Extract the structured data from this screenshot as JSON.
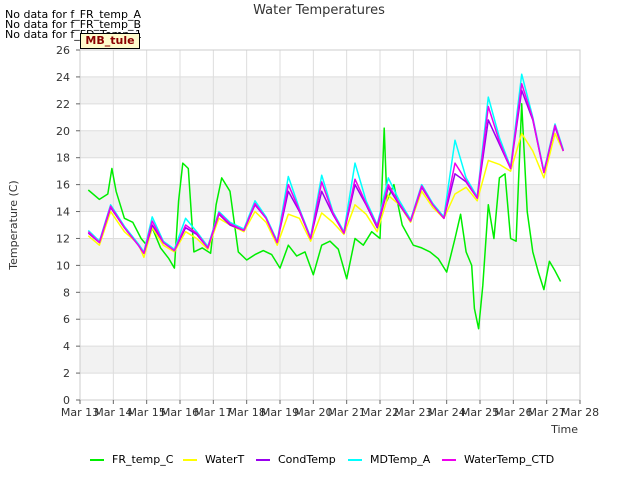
{
  "nodata_messages": [
    "No data for f_FR_temp_A",
    "No data for f_FR_temp_B",
    "No data for f_FD_Temp_1"
  ],
  "badge_label": "MB_tule",
  "chart_data": {
    "type": "line",
    "title": "Water Temperatures",
    "xlabel": "Time",
    "ylabel": "Temperature (C)",
    "ylim": [
      0,
      26
    ],
    "yticks": [
      0,
      2,
      4,
      6,
      8,
      10,
      12,
      14,
      16,
      18,
      20,
      22,
      24,
      26
    ],
    "xlim": [
      "Mar 13",
      "Mar 28"
    ],
    "xtick_labels": [
      "Mar 13",
      "Mar 14",
      "Mar 15",
      "Mar 16",
      "Mar 17",
      "Mar 18",
      "Mar 19",
      "Mar 20",
      "Mar 21",
      "Mar 22",
      "Mar 23",
      "Mar 24",
      "Mar 25",
      "Mar 26",
      "Mar 27",
      "Mar 28"
    ],
    "grid": true,
    "legend_position": "bottom",
    "series": [
      {
        "name": "FR_temp_C",
        "color": "#00ee00",
        "points": [
          [
            "Mar 13 06:00",
            15.6
          ],
          [
            "Mar 13 14:00",
            14.9
          ],
          [
            "Mar 13 20:00",
            15.3
          ],
          [
            "Mar 13 23:00",
            17.2
          ],
          [
            "Mar 14 02:00",
            15.5
          ],
          [
            "Mar 14 08:00",
            13.5
          ],
          [
            "Mar 14 14:00",
            13.2
          ],
          [
            "Mar 14 20:00",
            12.0
          ],
          [
            "Mar 15 00:00",
            11.5
          ],
          [
            "Mar 15 04:00",
            12.8
          ],
          [
            "Mar 15 10:00",
            11.3
          ],
          [
            "Mar 15 16:00",
            10.5
          ],
          [
            "Mar 15 20:00",
            9.8
          ],
          [
            "Mar 15 23:00",
            14.8
          ],
          [
            "Mar 16 02:00",
            17.6
          ],
          [
            "Mar 16 06:00",
            17.2
          ],
          [
            "Mar 16 10:00",
            11.0
          ],
          [
            "Mar 16 16:00",
            11.3
          ],
          [
            "Mar 16 22:00",
            10.9
          ],
          [
            "Mar 17 02:00",
            14.5
          ],
          [
            "Mar 17 06:00",
            16.5
          ],
          [
            "Mar 17 12:00",
            15.5
          ],
          [
            "Mar 17 18:00",
            11.0
          ],
          [
            "Mar 18 00:00",
            10.4
          ],
          [
            "Mar 18 06:00",
            10.8
          ],
          [
            "Mar 18 12:00",
            11.1
          ],
          [
            "Mar 18 18:00",
            10.8
          ],
          [
            "Mar 19 00:00",
            9.8
          ],
          [
            "Mar 19 06:00",
            11.5
          ],
          [
            "Mar 19 12:00",
            10.7
          ],
          [
            "Mar 19 18:00",
            11.0
          ],
          [
            "Mar 20 00:00",
            9.3
          ],
          [
            "Mar 20 06:00",
            11.5
          ],
          [
            "Mar 20 12:00",
            11.8
          ],
          [
            "Mar 20 18:00",
            11.2
          ],
          [
            "Mar 21 00:00",
            9.0
          ],
          [
            "Mar 21 06:00",
            12.0
          ],
          [
            "Mar 21 12:00",
            11.5
          ],
          [
            "Mar 21 18:00",
            12.5
          ],
          [
            "Mar 22 00:00",
            12.0
          ],
          [
            "Mar 22 03:00",
            20.2
          ],
          [
            "Mar 22 05:00",
            14.8
          ],
          [
            "Mar 22 10:00",
            16.0
          ],
          [
            "Mar 22 16:00",
            13.0
          ],
          [
            "Mar 23 00:00",
            11.5
          ],
          [
            "Mar 23 06:00",
            11.3
          ],
          [
            "Mar 23 12:00",
            11.0
          ],
          [
            "Mar 23 18:00",
            10.5
          ],
          [
            "Mar 24 00:00",
            9.5
          ],
          [
            "Mar 24 06:00",
            12.0
          ],
          [
            "Mar 24 10:00",
            13.8
          ],
          [
            "Mar 24 14:00",
            11.0
          ],
          [
            "Mar 24 18:00",
            10.0
          ],
          [
            "Mar 24 20:00",
            6.8
          ],
          [
            "Mar 24 23:00",
            5.3
          ],
          [
            "Mar 25 02:00",
            8.5
          ],
          [
            "Mar 25 06:00",
            14.5
          ],
          [
            "Mar 25 10:00",
            12.0
          ],
          [
            "Mar 25 14:00",
            16.5
          ],
          [
            "Mar 25 18:00",
            16.8
          ],
          [
            "Mar 25 22:00",
            12.0
          ],
          [
            "Mar 26 02:00",
            11.8
          ],
          [
            "Mar 26 06:00",
            22.0
          ],
          [
            "Mar 26 10:00",
            14.0
          ],
          [
            "Mar 26 14:00",
            11.0
          ],
          [
            "Mar 26 18:00",
            9.5
          ],
          [
            "Mar 26 22:00",
            8.2
          ],
          [
            "Mar 27 02:00",
            10.3
          ],
          [
            "Mar 27 06:00",
            9.6
          ],
          [
            "Mar 27 10:00",
            8.8
          ]
        ]
      },
      {
        "name": "WaterT",
        "color": "#ffff00",
        "points": [
          [
            "Mar 13 06:00",
            12.2
          ],
          [
            "Mar 13 14:00",
            11.5
          ],
          [
            "Mar 13 22:00",
            14.0
          ],
          [
            "Mar 14 08:00",
            12.5
          ],
          [
            "Mar 14 18:00",
            11.6
          ],
          [
            "Mar 14 22:00",
            10.6
          ],
          [
            "Mar 15 04:00",
            12.8
          ],
          [
            "Mar 15 12:00",
            11.5
          ],
          [
            "Mar 15 20:00",
            11.0
          ],
          [
            "Mar 16 04:00",
            12.5
          ],
          [
            "Mar 16 12:00",
            12.0
          ],
          [
            "Mar 16 20:00",
            11.2
          ],
          [
            "Mar 17 04:00",
            13.5
          ],
          [
            "Mar 17 12:00",
            13.0
          ],
          [
            "Mar 17 22:00",
            12.5
          ],
          [
            "Mar 18 06:00",
            14.0
          ],
          [
            "Mar 18 14:00",
            13.2
          ],
          [
            "Mar 18 22:00",
            11.5
          ],
          [
            "Mar 19 06:00",
            13.8
          ],
          [
            "Mar 19 14:00",
            13.5
          ],
          [
            "Mar 19 22:00",
            11.8
          ],
          [
            "Mar 20 06:00",
            13.9
          ],
          [
            "Mar 20 14:00",
            13.2
          ],
          [
            "Mar 20 22:00",
            12.3
          ],
          [
            "Mar 21 06:00",
            14.5
          ],
          [
            "Mar 21 14:00",
            13.8
          ],
          [
            "Mar 21 22:00",
            12.5
          ],
          [
            "Mar 22 06:00",
            15.2
          ],
          [
            "Mar 22 14:00",
            14.5
          ],
          [
            "Mar 22 22:00",
            13.2
          ],
          [
            "Mar 23 06:00",
            15.5
          ],
          [
            "Mar 23 14:00",
            14.3
          ],
          [
            "Mar 23 22:00",
            13.5
          ],
          [
            "Mar 24 06:00",
            15.3
          ],
          [
            "Mar 24 14:00",
            15.8
          ],
          [
            "Mar 24 22:00",
            14.8
          ],
          [
            "Mar 25 06:00",
            17.8
          ],
          [
            "Mar 25 14:00",
            17.5
          ],
          [
            "Mar 25 22:00",
            17.0
          ],
          [
            "Mar 26 06:00",
            19.8
          ],
          [
            "Mar 26 14:00",
            18.5
          ],
          [
            "Mar 26 22:00",
            16.5
          ],
          [
            "Mar 27 06:00",
            19.8
          ],
          [
            "Mar 27 12:00",
            18.5
          ]
        ]
      },
      {
        "name": "CondTemp",
        "color": "#9900ee",
        "points": [
          [
            "Mar 13 06:00",
            12.4
          ],
          [
            "Mar 13 14:00",
            11.7
          ],
          [
            "Mar 13 22:00",
            14.3
          ],
          [
            "Mar 14 08:00",
            12.8
          ],
          [
            "Mar 14 18:00",
            11.5
          ],
          [
            "Mar 14 22:00",
            10.9
          ],
          [
            "Mar 15 04:00",
            13.0
          ],
          [
            "Mar 15 12:00",
            11.7
          ],
          [
            "Mar 15 20:00",
            11.1
          ],
          [
            "Mar 16 04:00",
            12.8
          ],
          [
            "Mar 16 12:00",
            12.3
          ],
          [
            "Mar 16 20:00",
            11.3
          ],
          [
            "Mar 17 04:00",
            13.8
          ],
          [
            "Mar 17 12:00",
            13.0
          ],
          [
            "Mar 17 22:00",
            12.6
          ],
          [
            "Mar 18 06:00",
            14.5
          ],
          [
            "Mar 18 14:00",
            13.5
          ],
          [
            "Mar 18 22:00",
            11.7
          ],
          [
            "Mar 19 06:00",
            15.5
          ],
          [
            "Mar 19 14:00",
            14.0
          ],
          [
            "Mar 19 22:00",
            12.0
          ],
          [
            "Mar 20 06:00",
            15.5
          ],
          [
            "Mar 20 14:00",
            13.8
          ],
          [
            "Mar 20 22:00",
            12.4
          ],
          [
            "Mar 21 06:00",
            16.0
          ],
          [
            "Mar 21 14:00",
            14.5
          ],
          [
            "Mar 21 22:00",
            12.8
          ],
          [
            "Mar 22 06:00",
            15.8
          ],
          [
            "Mar 22 14:00",
            14.5
          ],
          [
            "Mar 22 22:00",
            13.3
          ],
          [
            "Mar 23 06:00",
            15.8
          ],
          [
            "Mar 23 14:00",
            14.5
          ],
          [
            "Mar 23 22:00",
            13.5
          ],
          [
            "Mar 24 06:00",
            16.8
          ],
          [
            "Mar 24 14:00",
            16.2
          ],
          [
            "Mar 24 22:00",
            15.0
          ],
          [
            "Mar 25 06:00",
            20.8
          ],
          [
            "Mar 25 14:00",
            19.0
          ],
          [
            "Mar 25 22:00",
            17.2
          ],
          [
            "Mar 26 06:00",
            23.0
          ],
          [
            "Mar 26 14:00",
            20.8
          ],
          [
            "Mar 26 22:00",
            16.9
          ],
          [
            "Mar 27 06:00",
            20.3
          ],
          [
            "Mar 27 12:00",
            18.5
          ]
        ]
      },
      {
        "name": "MDTemp_A",
        "color": "#00ffff",
        "points": [
          [
            "Mar 13 06:00",
            12.6
          ],
          [
            "Mar 13 14:00",
            11.8
          ],
          [
            "Mar 13 22:00",
            14.5
          ],
          [
            "Mar 14 08:00",
            12.9
          ],
          [
            "Mar 14 18:00",
            11.6
          ],
          [
            "Mar 14 22:00",
            11.0
          ],
          [
            "Mar 15 04:00",
            13.6
          ],
          [
            "Mar 15 12:00",
            11.8
          ],
          [
            "Mar 15 20:00",
            11.2
          ],
          [
            "Mar 16 04:00",
            13.5
          ],
          [
            "Mar 16 12:00",
            12.5
          ],
          [
            "Mar 16 20:00",
            11.4
          ],
          [
            "Mar 17 04:00",
            14.0
          ],
          [
            "Mar 17 12:00",
            13.2
          ],
          [
            "Mar 17 22:00",
            12.7
          ],
          [
            "Mar 18 06:00",
            14.8
          ],
          [
            "Mar 18 14:00",
            13.6
          ],
          [
            "Mar 18 22:00",
            11.8
          ],
          [
            "Mar 19 06:00",
            16.6
          ],
          [
            "Mar 19 14:00",
            14.2
          ],
          [
            "Mar 19 22:00",
            12.1
          ],
          [
            "Mar 20 06:00",
            16.7
          ],
          [
            "Mar 20 14:00",
            14.0
          ],
          [
            "Mar 20 22:00",
            12.5
          ],
          [
            "Mar 21 06:00",
            17.6
          ],
          [
            "Mar 21 14:00",
            14.8
          ],
          [
            "Mar 21 22:00",
            13.0
          ],
          [
            "Mar 22 06:00",
            16.5
          ],
          [
            "Mar 22 14:00",
            14.8
          ],
          [
            "Mar 22 22:00",
            13.4
          ],
          [
            "Mar 23 06:00",
            16.0
          ],
          [
            "Mar 23 14:00",
            14.6
          ],
          [
            "Mar 23 22:00",
            13.6
          ],
          [
            "Mar 24 06:00",
            19.3
          ],
          [
            "Mar 24 14:00",
            16.5
          ],
          [
            "Mar 24 22:00",
            15.1
          ],
          [
            "Mar 25 06:00",
            22.5
          ],
          [
            "Mar 25 14:00",
            19.5
          ],
          [
            "Mar 25 22:00",
            17.3
          ],
          [
            "Mar 26 06:00",
            24.2
          ],
          [
            "Mar 26 14:00",
            21.0
          ],
          [
            "Mar 26 22:00",
            17.0
          ],
          [
            "Mar 27 06:00",
            20.5
          ],
          [
            "Mar 27 12:00",
            18.6
          ]
        ]
      },
      {
        "name": "WaterTemp_CTD",
        "color": "#ee00ee",
        "points": [
          [
            "Mar 13 06:00",
            12.5
          ],
          [
            "Mar 13 14:00",
            11.7
          ],
          [
            "Mar 13 22:00",
            14.4
          ],
          [
            "Mar 14 08:00",
            12.8
          ],
          [
            "Mar 14 18:00",
            11.5
          ],
          [
            "Mar 14 22:00",
            10.9
          ],
          [
            "Mar 15 04:00",
            13.3
          ],
          [
            "Mar 15 12:00",
            11.7
          ],
          [
            "Mar 15 20:00",
            11.1
          ],
          [
            "Mar 16 04:00",
            13.0
          ],
          [
            "Mar 16 12:00",
            12.4
          ],
          [
            "Mar 16 20:00",
            11.3
          ],
          [
            "Mar 17 04:00",
            13.9
          ],
          [
            "Mar 17 12:00",
            13.1
          ],
          [
            "Mar 17 22:00",
            12.6
          ],
          [
            "Mar 18 06:00",
            14.6
          ],
          [
            "Mar 18 14:00",
            13.5
          ],
          [
            "Mar 18 22:00",
            11.7
          ],
          [
            "Mar 19 06:00",
            16.0
          ],
          [
            "Mar 19 14:00",
            14.1
          ],
          [
            "Mar 19 22:00",
            12.0
          ],
          [
            "Mar 20 06:00",
            16.2
          ],
          [
            "Mar 20 14:00",
            13.9
          ],
          [
            "Mar 20 22:00",
            12.4
          ],
          [
            "Mar 21 06:00",
            16.4
          ],
          [
            "Mar 21 14:00",
            14.6
          ],
          [
            "Mar 21 22:00",
            12.9
          ],
          [
            "Mar 22 06:00",
            16.0
          ],
          [
            "Mar 22 14:00",
            14.6
          ],
          [
            "Mar 22 22:00",
            13.3
          ],
          [
            "Mar 23 06:00",
            15.9
          ],
          [
            "Mar 23 14:00",
            14.5
          ],
          [
            "Mar 23 22:00",
            13.5
          ],
          [
            "Mar 24 06:00",
            17.6
          ],
          [
            "Mar 24 14:00",
            16.3
          ],
          [
            "Mar 24 22:00",
            15.0
          ],
          [
            "Mar 25 06:00",
            21.8
          ],
          [
            "Mar 25 14:00",
            19.2
          ],
          [
            "Mar 25 22:00",
            17.2
          ],
          [
            "Mar 26 06:00",
            23.5
          ],
          [
            "Mar 26 14:00",
            20.9
          ],
          [
            "Mar 26 22:00",
            16.9
          ],
          [
            "Mar 27 06:00",
            20.4
          ],
          [
            "Mar 27 12:00",
            18.5
          ]
        ]
      }
    ]
  }
}
